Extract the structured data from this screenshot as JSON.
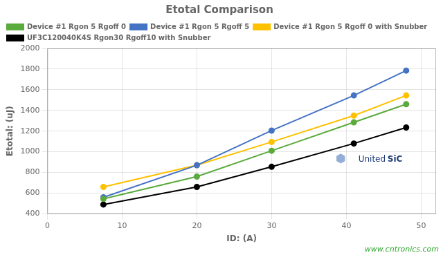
{
  "chart_data": {
    "type": "line",
    "title": "Etotal Comparison",
    "xlabel": "ID: (A)",
    "ylabel": "Etotal: (uJ)",
    "x": [
      7.5,
      20,
      30,
      41,
      48
    ],
    "series": [
      {
        "name": "Device #1 Rgon 5 Rgoff 0",
        "color": "#5aaa3c",
        "values": [
          545,
          760,
          1010,
          1285,
          1460
        ]
      },
      {
        "name": "Device #1 Rgon 5 Rgoff 5",
        "color": "#4472c4",
        "values": [
          560,
          870,
          1205,
          1545,
          1785
        ]
      },
      {
        "name": "Device #1 Rgon 5 Rgoff 0 with Snubber",
        "color": "#ffc000",
        "values": [
          660,
          870,
          1095,
          1350,
          1545
        ]
      },
      {
        "name": "UF3C120040K4S Rgon30 Rgoff10 with Snubber",
        "color": "#000000",
        "values": [
          490,
          660,
          855,
          1080,
          1235
        ]
      }
    ],
    "xlim": [
      0,
      52
    ],
    "xticks": [
      0,
      10,
      20,
      30,
      40,
      50
    ],
    "ylim": [
      400,
      2000
    ],
    "yticks": [
      400,
      600,
      800,
      1000,
      1200,
      1400,
      1600,
      1800,
      2000
    ],
    "grid": true,
    "legend": "upper left",
    "marker": "circle",
    "annotations": [
      {
        "text": "⬢",
        "color": "#7799cc"
      },
      {
        "text": "United",
        "color": "#1f3d7a"
      },
      {
        "text": "SiC",
        "color": "#1f3d7a"
      },
      {
        "text": "www.cntronics.com",
        "color": "#33aa33"
      }
    ]
  }
}
